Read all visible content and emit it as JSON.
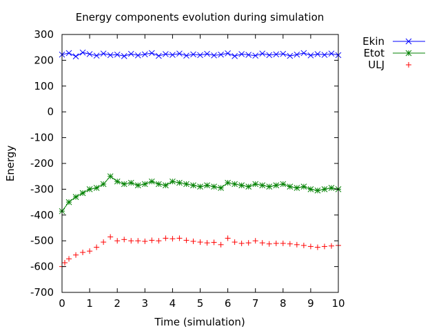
{
  "chart_data": {
    "type": "scatter",
    "title": "Energy components evolution during simulation",
    "xlabel": "Time (simulation)",
    "ylabel": "Energy",
    "xlim": [
      0,
      10
    ],
    "ylim": [
      -700,
      300
    ],
    "xticks": [
      0,
      1,
      2,
      3,
      4,
      5,
      6,
      7,
      8,
      9,
      10
    ],
    "yticks": [
      300,
      200,
      100,
      0,
      -100,
      -200,
      -300,
      -400,
      -500,
      -600,
      -700
    ],
    "grid": false,
    "legend_position": "top-right outside",
    "series": [
      {
        "name": "Ekin",
        "color": "#0000ff",
        "marker": "x",
        "style": "linespoints",
        "x": [
          0,
          0.25,
          0.5,
          0.75,
          1,
          1.25,
          1.5,
          1.75,
          2,
          2.25,
          2.5,
          2.75,
          3,
          3.25,
          3.5,
          3.75,
          4,
          4.25,
          4.5,
          4.75,
          5,
          5.25,
          5.5,
          5.75,
          6,
          6.25,
          6.5,
          6.75,
          7,
          7.25,
          7.5,
          7.75,
          8,
          8.25,
          8.5,
          8.75,
          9,
          9.25,
          9.5,
          9.75,
          10
        ],
        "y": [
          222,
          228,
          215,
          230,
          224,
          218,
          226,
          220,
          222,
          216,
          225,
          219,
          223,
          228,
          217,
          224,
          221,
          226,
          218,
          223,
          220,
          225,
          219,
          222,
          227,
          216,
          224,
          221,
          218,
          226,
          220,
          223,
          225,
          217,
          222,
          228,
          219,
          224,
          221,
          226,
          220
        ]
      },
      {
        "name": "Etot",
        "color": "#008000",
        "marker": "*",
        "style": "linespoints",
        "x": [
          0,
          0.25,
          0.5,
          0.75,
          1,
          1.25,
          1.5,
          1.75,
          2,
          2.25,
          2.5,
          2.75,
          3,
          3.25,
          3.5,
          3.75,
          4,
          4.25,
          4.5,
          4.75,
          5,
          5.25,
          5.5,
          5.75,
          6,
          6.25,
          6.5,
          6.75,
          7,
          7.25,
          7.5,
          7.75,
          8,
          8.25,
          8.5,
          8.75,
          9,
          9.25,
          9.5,
          9.75,
          10
        ],
        "y": [
          -385,
          -350,
          -330,
          -315,
          -300,
          -295,
          -280,
          -250,
          -270,
          -280,
          -275,
          -285,
          -280,
          -270,
          -280,
          -285,
          -270,
          -275,
          -280,
          -285,
          -290,
          -285,
          -290,
          -295,
          -275,
          -280,
          -285,
          -290,
          -280,
          -285,
          -290,
          -285,
          -280,
          -290,
          -295,
          -290,
          -300,
          -305,
          -300,
          -295,
          -300
        ]
      },
      {
        "name": "ULJ",
        "color": "#ff0000",
        "marker": "+",
        "style": "points",
        "x": [
          0,
          0.1,
          0.25,
          0.5,
          0.75,
          1,
          1.25,
          1.5,
          1.75,
          2,
          2.25,
          2.5,
          2.75,
          3,
          3.25,
          3.5,
          3.75,
          4,
          4.25,
          4.5,
          4.75,
          5,
          5.25,
          5.5,
          5.75,
          6,
          6.25,
          6.5,
          6.75,
          7,
          7.25,
          7.5,
          7.75,
          8,
          8.25,
          8.5,
          8.75,
          9,
          9.25,
          9.5,
          9.75,
          10
        ],
        "y": [
          -600,
          -585,
          -570,
          -555,
          -545,
          -540,
          -525,
          -505,
          -485,
          -500,
          -495,
          -500,
          -500,
          -502,
          -498,
          -500,
          -490,
          -492,
          -490,
          -498,
          -502,
          -505,
          -508,
          -506,
          -515,
          -490,
          -505,
          -510,
          -508,
          -500,
          -508,
          -512,
          -510,
          -510,
          -512,
          -515,
          -518,
          -522,
          -525,
          -522,
          -520,
          -518
        ]
      }
    ]
  }
}
